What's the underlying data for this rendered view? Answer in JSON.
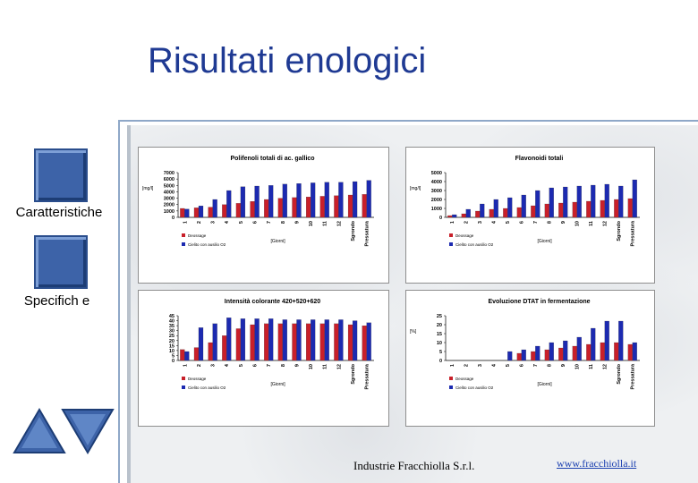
{
  "slide": {
    "title": "Risultati enologici"
  },
  "nav": {
    "item1_label": "Caratteristiche",
    "item2_label": "Specifich e"
  },
  "footer": {
    "company": "Industrie Fracchiolla S.r.l.",
    "link": "www.fracchiolla.it"
  },
  "colors": {
    "series1": "#c8202a",
    "series2": "#1c2ab0",
    "title": "#1f3a93",
    "button": "#3d63a8"
  },
  "icons": [
    "previous-arrow-icon",
    "next-arrow-icon"
  ],
  "chart_data": [
    {
      "type": "bar",
      "title": "Polifenoli totali di ac. gallico",
      "ylabel": "[mg/l]",
      "xlabel": "[Giorni]",
      "ylim": [
        0,
        7000
      ],
      "yticks": [
        0,
        1000,
        2000,
        3000,
        4000,
        5000,
        6000,
        7000
      ],
      "categories": [
        "1",
        "2",
        "3",
        "4",
        "5",
        "6",
        "7",
        "8",
        "9",
        "10",
        "11",
        "12",
        "Sgrondo",
        "Pressatura"
      ],
      "series": [
        {
          "name": "Deossage",
          "values": [
            1400,
            1500,
            1600,
            2000,
            2200,
            2500,
            2800,
            3000,
            3100,
            3200,
            3300,
            3400,
            3500,
            3600
          ]
        },
        {
          "name": "Cielito con ausilio O2",
          "values": [
            1300,
            1800,
            2800,
            4200,
            4800,
            4900,
            5000,
            5200,
            5300,
            5400,
            5500,
            5500,
            5600,
            5800
          ]
        }
      ]
    },
    {
      "type": "bar",
      "title": "Flavonoidi totali",
      "ylabel": "[mg/l]",
      "xlabel": "[Giorni]",
      "ylim": [
        0,
        5000
      ],
      "yticks": [
        0,
        1000,
        2000,
        3000,
        4000,
        5000
      ],
      "categories": [
        "1",
        "2",
        "3",
        "4",
        "5",
        "6",
        "7",
        "8",
        "9",
        "10",
        "11",
        "12",
        "Sgrondo",
        "Pressatura"
      ],
      "series": [
        {
          "name": "Deossage",
          "values": [
            200,
            400,
            700,
            900,
            1000,
            1100,
            1300,
            1500,
            1600,
            1700,
            1800,
            1900,
            2000,
            2100
          ]
        },
        {
          "name": "Cielito con ausilio O2",
          "values": [
            300,
            900,
            1500,
            2000,
            2200,
            2500,
            3000,
            3300,
            3400,
            3500,
            3600,
            3700,
            3500,
            4200
          ]
        }
      ]
    },
    {
      "type": "bar",
      "title": "Intensità colorante 420+520+620",
      "ylabel": "",
      "xlabel": "[Giorni]",
      "ylim": [
        0,
        45
      ],
      "yticks": [
        0,
        5,
        10,
        15,
        20,
        25,
        30,
        35,
        40,
        45
      ],
      "categories": [
        "1",
        "2",
        "3",
        "4",
        "5",
        "6",
        "7",
        "8",
        "9",
        "10",
        "11",
        "12",
        "Sgrondo",
        "Pressatura"
      ],
      "series": [
        {
          "name": "Deossage",
          "values": [
            11,
            13,
            18,
            25,
            32,
            36,
            37,
            37,
            37,
            37,
            37,
            37,
            36,
            35
          ]
        },
        {
          "name": "Cielito con ausilio O2",
          "values": [
            9,
            33,
            37,
            43,
            42,
            42,
            42,
            41,
            41,
            41,
            41,
            41,
            40,
            38
          ]
        }
      ]
    },
    {
      "type": "bar",
      "title": "Evoluzione DTAT in fermentazione",
      "ylabel": "[%]",
      "xlabel": "[Giorni]",
      "ylim": [
        0,
        25
      ],
      "yticks": [
        0,
        5,
        10,
        15,
        20,
        25
      ],
      "categories": [
        "1",
        "2",
        "3",
        "4",
        "5",
        "6",
        "7",
        "8",
        "9",
        "10",
        "11",
        "12",
        "Sgrondo",
        "Pressatura"
      ],
      "series": [
        {
          "name": "Deossage",
          "values": [
            0,
            0,
            0,
            0,
            0,
            4,
            5,
            6,
            7,
            8,
            9,
            10,
            10,
            9
          ]
        },
        {
          "name": "Cielito con ausilio O2",
          "values": [
            0,
            0,
            0,
            0,
            5,
            6,
            8,
            10,
            11,
            13,
            18,
            22,
            22,
            10
          ]
        }
      ]
    }
  ]
}
